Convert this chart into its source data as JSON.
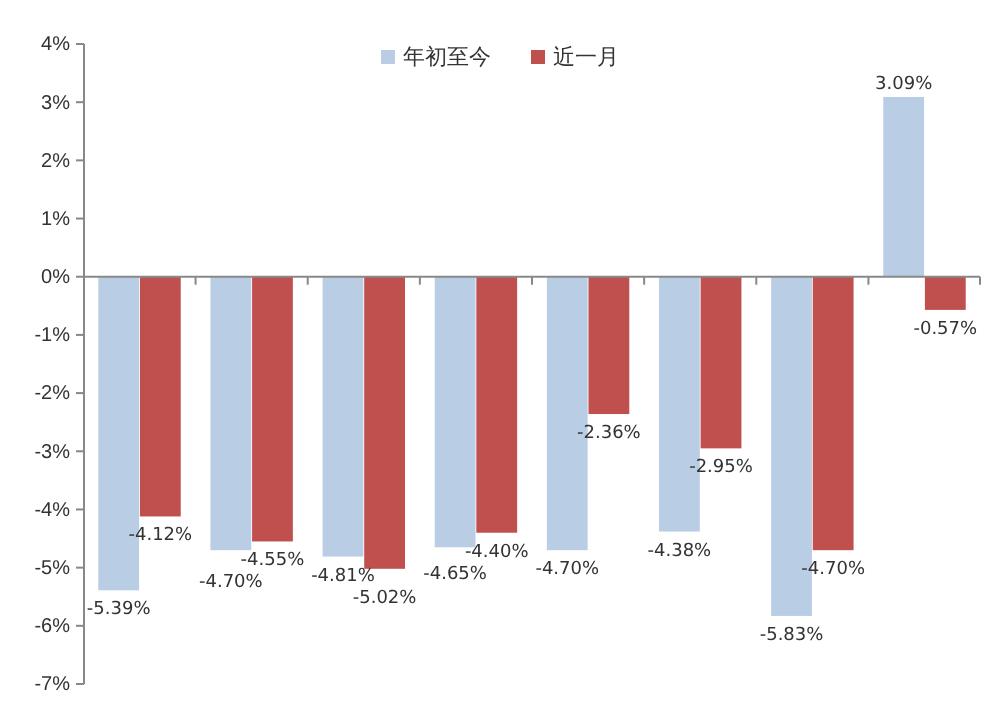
{
  "chart_data": {
    "type": "bar",
    "categories": [
      null,
      null,
      null,
      null,
      null,
      null,
      null,
      null
    ],
    "series": [
      {
        "name": "年初至今",
        "color": "#b9cde5",
        "values": [
          -5.39,
          -4.7,
          -4.81,
          -4.65,
          -4.7,
          -4.38,
          -5.83,
          3.09
        ],
        "value_labels": [
          "-5.39%",
          "-4.70%",
          "-4.81%",
          "-4.65%",
          "-4.70%",
          "-4.38%",
          "-5.83%",
          "3.09%"
        ]
      },
      {
        "name": "近一月",
        "color": "#c0504d",
        "values": [
          -4.12,
          -4.55,
          -5.02,
          -4.4,
          -2.36,
          -2.95,
          -4.7,
          -0.57
        ],
        "value_labels": [
          "-4.12%",
          "-4.55%",
          "-5.02%",
          "-4.40%",
          "-2.36%",
          "-2.95%",
          "-4.70%",
          "-0.57%"
        ]
      }
    ],
    "ylim": [
      -7,
      4
    ],
    "yticks": [
      {
        "value": -7,
        "label": "-7%"
      },
      {
        "value": -6,
        "label": "-6%"
      },
      {
        "value": -5,
        "label": "-5%"
      },
      {
        "value": -4,
        "label": "-4%"
      },
      {
        "value": -3,
        "label": "-3%"
      },
      {
        "value": -2,
        "label": "-2%"
      },
      {
        "value": -1,
        "label": "-1%"
      },
      {
        "value": 0,
        "label": "0%"
      },
      {
        "value": 1,
        "label": "1%"
      },
      {
        "value": 2,
        "label": "2%"
      },
      {
        "value": 3,
        "label": "3%"
      },
      {
        "value": 4,
        "label": "4%"
      }
    ],
    "legend": "top"
  }
}
